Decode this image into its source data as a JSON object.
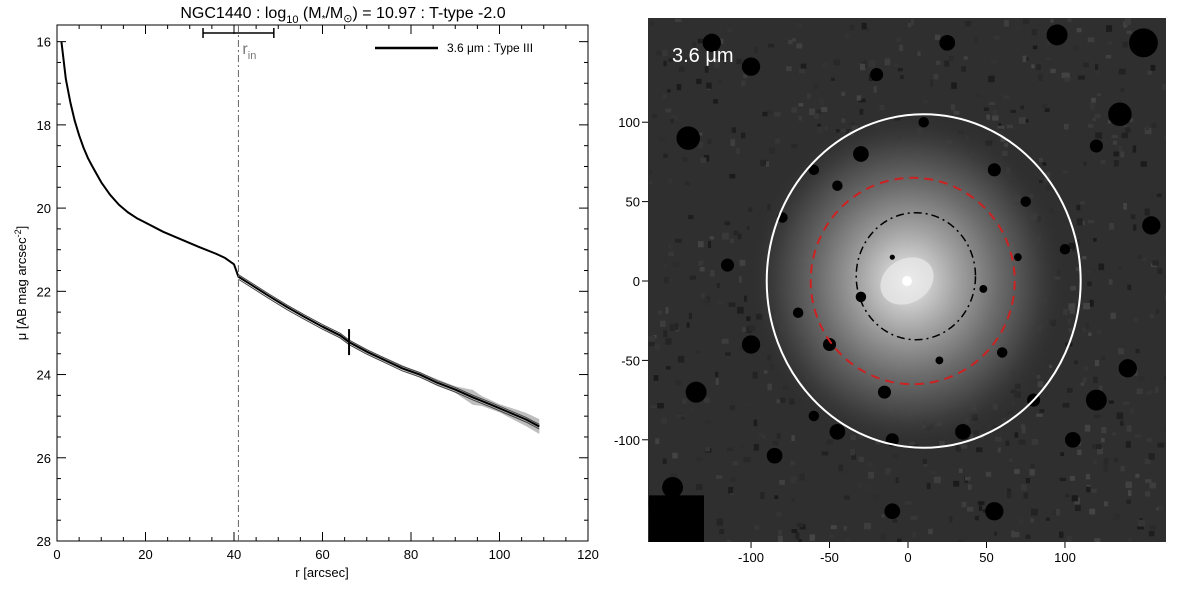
{
  "chart_data": [
    {
      "type": "line",
      "title": {
        "galaxy": "NGC1440 : log",
        "log_base": "10",
        "mass_open": " (M",
        "mass_star": "*",
        "mass_slash": "/M",
        "sun_symbol": "⊙",
        "tail": ") = 10.97 : T-type -2.0"
      },
      "xlabel": "r [arcsec]",
      "ylabel": {
        "mu": "μ",
        "unit": " [AB mag arcsec",
        "power": "-2",
        "close": "]"
      },
      "xlim": [
        0,
        120
      ],
      "ylim": [
        28,
        15.6
      ],
      "y_inverted": true,
      "x_ticks": [
        "0",
        "20",
        "40",
        "60",
        "80",
        "100",
        "120"
      ],
      "y_ticks": [
        "16",
        "18",
        "20",
        "22",
        "24",
        "26",
        "28"
      ],
      "legend": {
        "label": "3.6 μm : Type III",
        "placement": "top-right"
      },
      "annotations": {
        "r_in_label_base": "r",
        "r_in_label_sub": "in",
        "r_in_value": 41,
        "r_in_range": [
          33,
          49
        ],
        "break_marker_r": 66
      },
      "series": [
        {
          "name": "3.6 μm : Type III",
          "x": [
            1,
            2,
            3,
            4,
            5,
            6,
            7,
            8,
            10,
            12,
            14,
            16,
            18,
            20,
            24,
            28,
            32,
            36,
            38,
            40,
            41,
            44,
            48,
            52,
            56,
            60,
            64,
            66,
            70,
            74,
            78,
            82,
            86,
            90,
            94,
            98,
            102,
            106,
            109
          ],
          "y": [
            16.0,
            16.9,
            17.45,
            17.9,
            18.25,
            18.55,
            18.8,
            19.0,
            19.38,
            19.68,
            19.92,
            20.1,
            20.24,
            20.35,
            20.57,
            20.75,
            20.93,
            21.1,
            21.2,
            21.35,
            21.65,
            21.85,
            22.12,
            22.38,
            22.62,
            22.85,
            23.06,
            23.22,
            23.45,
            23.65,
            23.85,
            24.0,
            24.2,
            24.36,
            24.55,
            24.72,
            24.9,
            25.08,
            25.25
          ]
        }
      ],
      "uncertainty_band": {
        "x": [
          60,
          70,
          80,
          90,
          94,
          96,
          100,
          104,
          106,
          109
        ],
        "half_width": [
          0.04,
          0.05,
          0.06,
          0.08,
          0.18,
          0.12,
          0.1,
          0.14,
          0.16,
          0.18
        ]
      }
    },
    {
      "type": "image",
      "band_label": "3.6 μm",
      "xlim": [
        -165,
        165
      ],
      "ylim": [
        -165,
        165
      ],
      "x_ticks": [
        "-100",
        "-50",
        "0",
        "50",
        "100"
      ],
      "y_ticks": [
        "100",
        "50",
        "0",
        "-50",
        "-100"
      ],
      "ellipses": [
        {
          "name": "outer",
          "color": "#ffffff",
          "style": "solid",
          "center": [
            10,
            0
          ],
          "rx": 100,
          "ry": 105
        },
        {
          "name": "mid",
          "color": "#cc2222",
          "style": "dashed",
          "center": [
            3,
            0
          ],
          "rx": 65,
          "ry": 65
        },
        {
          "name": "inner",
          "color": "#000000",
          "style": "dash-dot",
          "center": [
            5,
            3
          ],
          "rx": 38,
          "ry": 40
        }
      ]
    }
  ]
}
